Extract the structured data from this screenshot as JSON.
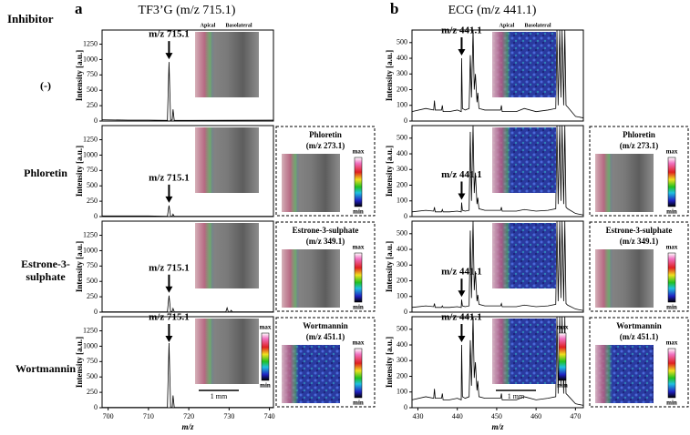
{
  "figure": {
    "row_header": "Inhibitor",
    "row_labels": [
      "(-)",
      "Phloretin",
      "Estrone-3-sulphate",
      "Wortmannin"
    ],
    "panels": [
      {
        "letter": "a",
        "title": "TF3’G (m/z 715.1)"
      },
      {
        "letter": "b",
        "title": "ECG (m/z 441.1)"
      }
    ],
    "image_header": [
      "Apical",
      "Basolateral"
    ],
    "scale_bar": "1 mm",
    "inhibitor_images": [
      {
        "name": "Phloretin",
        "mz": "(m/z 273.1)"
      },
      {
        "name": "Estrone-3-sulphate",
        "mz": "(m/z 349.1)"
      },
      {
        "name": "Wortmannin",
        "mz": "(m/z 451.1)"
      }
    ],
    "colorbar": {
      "max": "max",
      "min": "min"
    }
  },
  "chart_data": [
    {
      "type": "line",
      "ylabel": "Intensity [a.u.]",
      "annotation": "m/z 715.1",
      "annotation_x": 715.1,
      "x": [
        698.5,
        705,
        710,
        714.7,
        715.1,
        715.5,
        715.9,
        716.1,
        716.4,
        720,
        741
      ],
      "values": [
        20,
        15,
        15,
        10,
        960,
        10,
        20,
        190,
        10,
        10,
        15
      ],
      "xlim": [
        698.5,
        741
      ],
      "ylim": [
        0,
        1480
      ],
      "yticks": [
        0,
        250,
        500,
        750,
        1000,
        1250
      ]
    },
    {
      "type": "line",
      "ylabel": "Intensity [a.u.]",
      "annotation": "m/z 715.1",
      "annotation_x": 715.1,
      "x": [
        698.5,
        710,
        714.7,
        715.1,
        715.5,
        715.9,
        716.1,
        716.4,
        741
      ],
      "values": [
        10,
        10,
        5,
        180,
        5,
        5,
        40,
        5,
        5
      ],
      "xlim": [
        698.5,
        741
      ],
      "ylim": [
        0,
        1480
      ],
      "yticks": [
        0,
        250,
        500,
        750,
        1000,
        1250
      ]
    },
    {
      "type": "line",
      "ylabel": "Intensity [a.u.]",
      "annotation": "m/z 715.1",
      "annotation_x": 715.1,
      "x": [
        698.5,
        714.7,
        715.1,
        715.5,
        715.9,
        716.1,
        716.4,
        729.2,
        729.5,
        729.8,
        730.3,
        730.5,
        730.8,
        741
      ],
      "values": [
        5,
        5,
        270,
        10,
        10,
        60,
        5,
        5,
        70,
        5,
        5,
        30,
        5,
        5
      ],
      "xlim": [
        698.5,
        741
      ],
      "ylim": [
        0,
        1480
      ],
      "yticks": [
        0,
        250,
        500,
        750,
        1000,
        1250
      ]
    },
    {
      "type": "line",
      "ylabel": "Intensity [a.u.]",
      "annotation": "m/z 715.1",
      "annotation_x": 715.1,
      "x": [
        698.5,
        714.7,
        715.1,
        715.5,
        715.9,
        716.1,
        716.4,
        741
      ],
      "values": [
        5,
        5,
        1050,
        5,
        5,
        200,
        5,
        5
      ],
      "xlim": [
        698.5,
        741
      ],
      "ylim": [
        0,
        1480
      ],
      "yticks": [
        0,
        250,
        500,
        750,
        1000,
        1250
      ],
      "xticks": [
        700,
        710,
        720,
        730,
        740
      ],
      "xlabel": "m/z"
    },
    {
      "type": "line",
      "ylabel": "Intensity [a.u.]",
      "annotation": "m/z 441.1",
      "annotation_x": 441.1,
      "x": [
        428.5,
        432,
        434,
        434.2,
        434.4,
        436,
        436.2,
        436.4,
        438,
        440,
        441,
        441.1,
        441.3,
        442,
        443,
        443.3,
        443.6,
        444,
        444.3,
        444.6,
        445,
        445.2,
        445.5,
        447,
        449,
        451,
        451.2,
        451.4,
        455,
        457,
        460,
        463,
        465,
        465.3,
        465.6,
        466,
        466.3,
        466.6,
        467,
        467.3,
        467.6,
        468,
        470,
        472
      ],
      "values": [
        60,
        80,
        70,
        130,
        70,
        70,
        100,
        60,
        60,
        70,
        60,
        400,
        80,
        70,
        80,
        420,
        150,
        580,
        200,
        300,
        120,
        180,
        80,
        70,
        70,
        70,
        100,
        60,
        60,
        80,
        60,
        70,
        80,
        580,
        100,
        580,
        150,
        580,
        100,
        580,
        100,
        90,
        30,
        20
      ],
      "xlim": [
        428.5,
        472
      ],
      "ylim": [
        0,
        580
      ],
      "yticks": [
        0,
        100,
        200,
        300,
        400,
        500
      ]
    },
    {
      "type": "line",
      "ylabel": "Intensity [a.u.]",
      "annotation": "m/z 441.1",
      "annotation_x": 441.1,
      "x": [
        428.5,
        432,
        434,
        434.2,
        434.4,
        436,
        436.2,
        436.4,
        438,
        440,
        441,
        441.1,
        441.3,
        442,
        443,
        443.3,
        443.6,
        444,
        444.3,
        444.6,
        445,
        445.2,
        445.5,
        447,
        449,
        451,
        451.2,
        451.4,
        455,
        457,
        460,
        463,
        465,
        465.3,
        465.6,
        466,
        466.3,
        466.6,
        467,
        467.3,
        467.6,
        468,
        470,
        472
      ],
      "values": [
        30,
        40,
        35,
        60,
        30,
        30,
        45,
        30,
        30,
        35,
        30,
        90,
        40,
        35,
        40,
        540,
        100,
        580,
        150,
        280,
        80,
        120,
        50,
        40,
        40,
        40,
        60,
        35,
        35,
        45,
        35,
        40,
        50,
        580,
        80,
        580,
        100,
        580,
        80,
        580,
        60,
        50,
        20,
        10
      ],
      "xlim": [
        428.5,
        472
      ],
      "ylim": [
        0,
        580
      ],
      "yticks": [
        0,
        100,
        200,
        300,
        400,
        500
      ]
    },
    {
      "type": "line",
      "ylabel": "Intensity [a.u.]",
      "annotation": "m/z 441.1",
      "annotation_x": 441.1,
      "x": [
        428.5,
        432,
        434,
        434.2,
        434.4,
        436,
        436.2,
        436.4,
        438,
        440,
        441,
        441.1,
        441.3,
        442,
        443,
        443.3,
        443.6,
        444,
        444.3,
        444.6,
        445,
        445.2,
        445.5,
        447,
        449,
        451,
        451.2,
        451.4,
        455,
        457,
        460,
        463,
        465,
        465.3,
        465.6,
        466,
        466.3,
        466.6,
        467,
        467.3,
        467.6,
        468,
        470,
        472
      ],
      "values": [
        30,
        40,
        35,
        55,
        30,
        30,
        40,
        30,
        30,
        35,
        30,
        80,
        40,
        35,
        40,
        520,
        90,
        580,
        140,
        260,
        70,
        110,
        50,
        40,
        40,
        40,
        55,
        35,
        35,
        45,
        35,
        40,
        50,
        580,
        70,
        580,
        90,
        580,
        70,
        580,
        55,
        45,
        20,
        10
      ],
      "xlim": [
        428.5,
        472
      ],
      "ylim": [
        0,
        580
      ],
      "yticks": [
        0,
        100,
        200,
        300,
        400,
        500
      ]
    },
    {
      "type": "line",
      "ylabel": "Intensity [a.u.]",
      "annotation": "m/z 441.1",
      "annotation_x": 441.1,
      "x": [
        428.5,
        432,
        434,
        434.2,
        434.4,
        436,
        436.2,
        436.4,
        438,
        440,
        441,
        441.1,
        441.3,
        442,
        443,
        443.3,
        443.6,
        444,
        444.3,
        444.6,
        445,
        445.2,
        445.5,
        447,
        449,
        451,
        451.2,
        451.4,
        455,
        457,
        460,
        463,
        465,
        465.3,
        465.6,
        466,
        466.3,
        466.6,
        467,
        467.3,
        467.6,
        468,
        470,
        472
      ],
      "values": [
        50,
        70,
        60,
        120,
        60,
        60,
        90,
        50,
        50,
        60,
        50,
        400,
        70,
        60,
        70,
        430,
        140,
        580,
        190,
        290,
        110,
        170,
        70,
        60,
        60,
        60,
        90,
        50,
        50,
        70,
        50,
        60,
        70,
        580,
        90,
        580,
        140,
        580,
        90,
        580,
        90,
        80,
        25,
        15
      ],
      "xlim": [
        428.5,
        472
      ],
      "ylim": [
        0,
        580
      ],
      "yticks": [
        0,
        100,
        200,
        300,
        400,
        500
      ],
      "xticks": [
        430,
        440,
        450,
        460,
        470
      ],
      "xlabel": "m/z"
    }
  ]
}
